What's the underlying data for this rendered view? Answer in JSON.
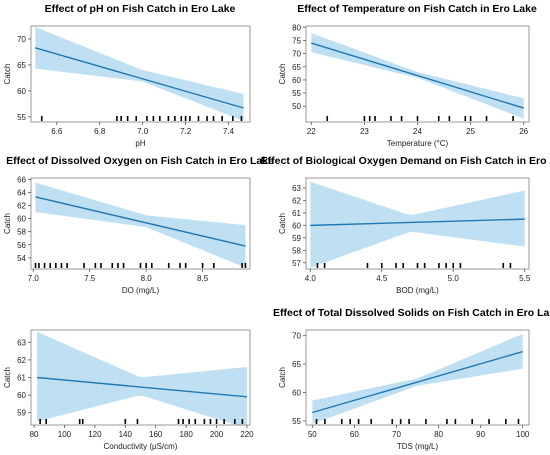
{
  "chart_data": [
    {
      "type": "line",
      "title": "Effect of pH on Fish Catch in Ero Lake",
      "xlabel": "pH",
      "ylabel": "Catch",
      "xlim": [
        6.48,
        7.5
      ],
      "ylim": [
        54,
        72.5
      ],
      "xticks": [
        6.6,
        6.8,
        7.0,
        7.2,
        7.4
      ],
      "xtick_labels": [
        "6.6",
        "6.8",
        "7.0",
        "7.2",
        "7.4"
      ],
      "yticks": [
        55,
        60,
        65,
        70
      ],
      "ytick_labels": [
        "55",
        "60",
        "65",
        "70"
      ],
      "fit_line": {
        "x": [
          6.5,
          7.47
        ],
        "y": [
          68.3,
          56.7
        ]
      },
      "band": {
        "x": [
          6.5,
          7.0,
          7.47
        ],
        "lower": [
          64.3,
          61.8,
          54.2
        ],
        "upper": [
          72.3,
          64.0,
          59.4
        ]
      },
      "rug": [
        6.53,
        6.88,
        6.9,
        6.93,
        6.97,
        7.02,
        7.05,
        7.08,
        7.12,
        7.15,
        7.18,
        7.2,
        7.22,
        7.26,
        7.3,
        7.33,
        7.37,
        7.42,
        7.46
      ],
      "grid": false
    },
    {
      "type": "line",
      "title": "Effect of Temperature on Fish Catch in Ero Lake",
      "xlabel": "Temperature (°C)",
      "ylabel": "Catch",
      "xlim": [
        21.9,
        26.1
      ],
      "ylim": [
        44,
        80.5
      ],
      "xticks": [
        22,
        23,
        24,
        25,
        26
      ],
      "xtick_labels": [
        "22",
        "23",
        "24",
        "25",
        "26"
      ],
      "yticks": [
        50,
        55,
        60,
        65,
        70,
        75,
        80
      ],
      "ytick_labels": [
        "50",
        "55",
        "60",
        "65",
        "70",
        "75",
        "80"
      ],
      "fit_line": {
        "x": [
          22.0,
          26.0
        ],
        "y": [
          74.0,
          49.3
        ]
      },
      "band": {
        "x": [
          22.0,
          24.0,
          26.0
        ],
        "lower": [
          70.5,
          60.8,
          45.3
        ],
        "upper": [
          77.8,
          63.0,
          53.0
        ]
      },
      "rug": [
        22.3,
        23.0,
        23.1,
        23.2,
        23.5,
        23.7,
        24.0,
        24.4,
        24.6,
        24.9,
        25.0,
        25.3,
        25.8
      ],
      "grid": false
    },
    {
      "type": "line",
      "title": "Effect of Dissolved Oxygen on Fish Catch in Ero Lake",
      "xlabel": "DO (mg/L)",
      "ylabel": "Catch",
      "xlim": [
        6.98,
        8.92
      ],
      "ylim": [
        52.3,
        66.2
      ],
      "xticks": [
        7.0,
        7.5,
        8.0,
        8.5
      ],
      "xtick_labels": [
        "7.0",
        "7.5",
        "8.0",
        "8.5"
      ],
      "yticks": [
        54,
        56,
        58,
        60,
        62,
        64,
        66
      ],
      "ytick_labels": [
        "54",
        "56",
        "58",
        "60",
        "62",
        "64",
        "66"
      ],
      "fit_line": {
        "x": [
          7.02,
          8.88
        ],
        "y": [
          63.3,
          55.8
        ]
      },
      "band": {
        "x": [
          7.02,
          8.0,
          8.88
        ],
        "lower": [
          61.0,
          58.7,
          52.5
        ],
        "upper": [
          65.5,
          60.5,
          59.0
        ]
      },
      "rug": [
        7.02,
        7.05,
        7.1,
        7.15,
        7.2,
        7.25,
        7.3,
        7.45,
        7.55,
        7.6,
        7.7,
        7.75,
        7.8,
        7.95,
        8.0,
        8.05,
        8.2,
        8.3,
        8.35,
        8.5,
        8.6,
        8.85,
        8.88
      ],
      "grid": false
    },
    {
      "type": "line",
      "title": "Effect of Biological Oxygen Demand on Fish Catch in Ero Lake",
      "xlabel": "BOD (mg/L)",
      "ylabel": "Catch",
      "xlim": [
        3.97,
        5.53
      ],
      "ylim": [
        56.5,
        63.8
      ],
      "xticks": [
        4.0,
        4.5,
        5.0,
        5.5
      ],
      "xtick_labels": [
        "4.0",
        "4.5",
        "5.0",
        "5.5"
      ],
      "yticks": [
        57,
        58,
        59,
        60,
        61,
        62,
        63
      ],
      "ytick_labels": [
        "57",
        "58",
        "59",
        "60",
        "61",
        "62",
        "63"
      ],
      "fit_line": {
        "x": [
          4.0,
          5.5
        ],
        "y": [
          60.0,
          60.5
        ]
      },
      "band": {
        "x": [
          4.0,
          4.7,
          5.5
        ],
        "lower": [
          56.6,
          59.5,
          58.3
        ],
        "upper": [
          63.5,
          60.8,
          62.8
        ]
      },
      "rug": [
        4.05,
        4.1,
        4.4,
        4.5,
        4.6,
        4.65,
        4.75,
        4.8,
        4.9,
        4.95,
        5.0,
        5.05,
        5.35,
        5.4
      ],
      "grid": false
    },
    {
      "type": "line",
      "title": "",
      "xlabel": "Conductivity (µS/cm)",
      "ylabel": "Catch",
      "xlim": [
        78,
        222
      ],
      "ylim": [
        58.3,
        63.7
      ],
      "xticks": [
        80,
        100,
        120,
        140,
        160,
        180,
        200,
        220
      ],
      "xtick_labels": [
        "80",
        "100",
        "120",
        "140",
        "160",
        "180",
        "200",
        "220"
      ],
      "yticks": [
        59,
        60,
        61,
        62,
        63
      ],
      "ytick_labels": [
        "59",
        "60",
        "61",
        "62",
        "63"
      ],
      "fit_line": {
        "x": [
          82,
          220
        ],
        "y": [
          61.0,
          59.9
        ]
      },
      "band": {
        "x": [
          82,
          150,
          220
        ],
        "lower": [
          58.5,
          60.0,
          58.1
        ],
        "upper": [
          63.6,
          61.0,
          61.6
        ]
      },
      "rug": [
        84,
        88,
        110,
        112,
        140,
        148,
        175,
        178,
        182,
        186,
        192,
        196,
        200,
        205,
        212,
        217
      ],
      "grid": false
    },
    {
      "type": "line",
      "title": "Effect of Total Dissolved Solids on Fish Catch in Ero Lake",
      "xlabel": "TDS (mg/L)",
      "ylabel": "Catch",
      "xlim": [
        48.5,
        101.5
      ],
      "ylim": [
        54.3,
        71
      ],
      "xticks": [
        50,
        60,
        70,
        80,
        90,
        100
      ],
      "xtick_labels": [
        "50",
        "60",
        "70",
        "80",
        "90",
        "100"
      ],
      "yticks": [
        55,
        60,
        65,
        70
      ],
      "ytick_labels": [
        "55",
        "60",
        "65",
        "70"
      ],
      "fit_line": {
        "x": [
          50,
          100
        ],
        "y": [
          56.5,
          67.2
        ]
      },
      "band": {
        "x": [
          50,
          75,
          100
        ],
        "lower": [
          54.5,
          61.2,
          64.2
        ],
        "upper": [
          58.6,
          62.5,
          70.3
        ]
      },
      "rug": [
        51,
        53,
        57,
        59,
        61,
        64,
        69,
        71,
        73,
        77,
        82,
        84,
        88,
        92,
        96,
        99
      ],
      "grid": false
    }
  ],
  "panels": [
    {
      "title": "Effect of pH on Fish Catch in Ero Lake"
    },
    {
      "title": "Effect of Temperature on Fish Catch in Ero Lake"
    },
    {
      "title": "Effect of Dissolved Oxygen on Fish Catch in Ero Lake"
    },
    {
      "title": "Effect of Biological Oxygen Demand on Fish Catch in Ero Lake"
    },
    {
      "title": ""
    },
    {
      "title": "Effect of Total Dissolved Solids on Fish Catch in Ero Lake"
    }
  ],
  "colors": {
    "fit_line": "#1f77b4",
    "band": "#a9d6ee",
    "rug": "#000000",
    "frame": "#7f7f7f",
    "text": "#222222"
  }
}
